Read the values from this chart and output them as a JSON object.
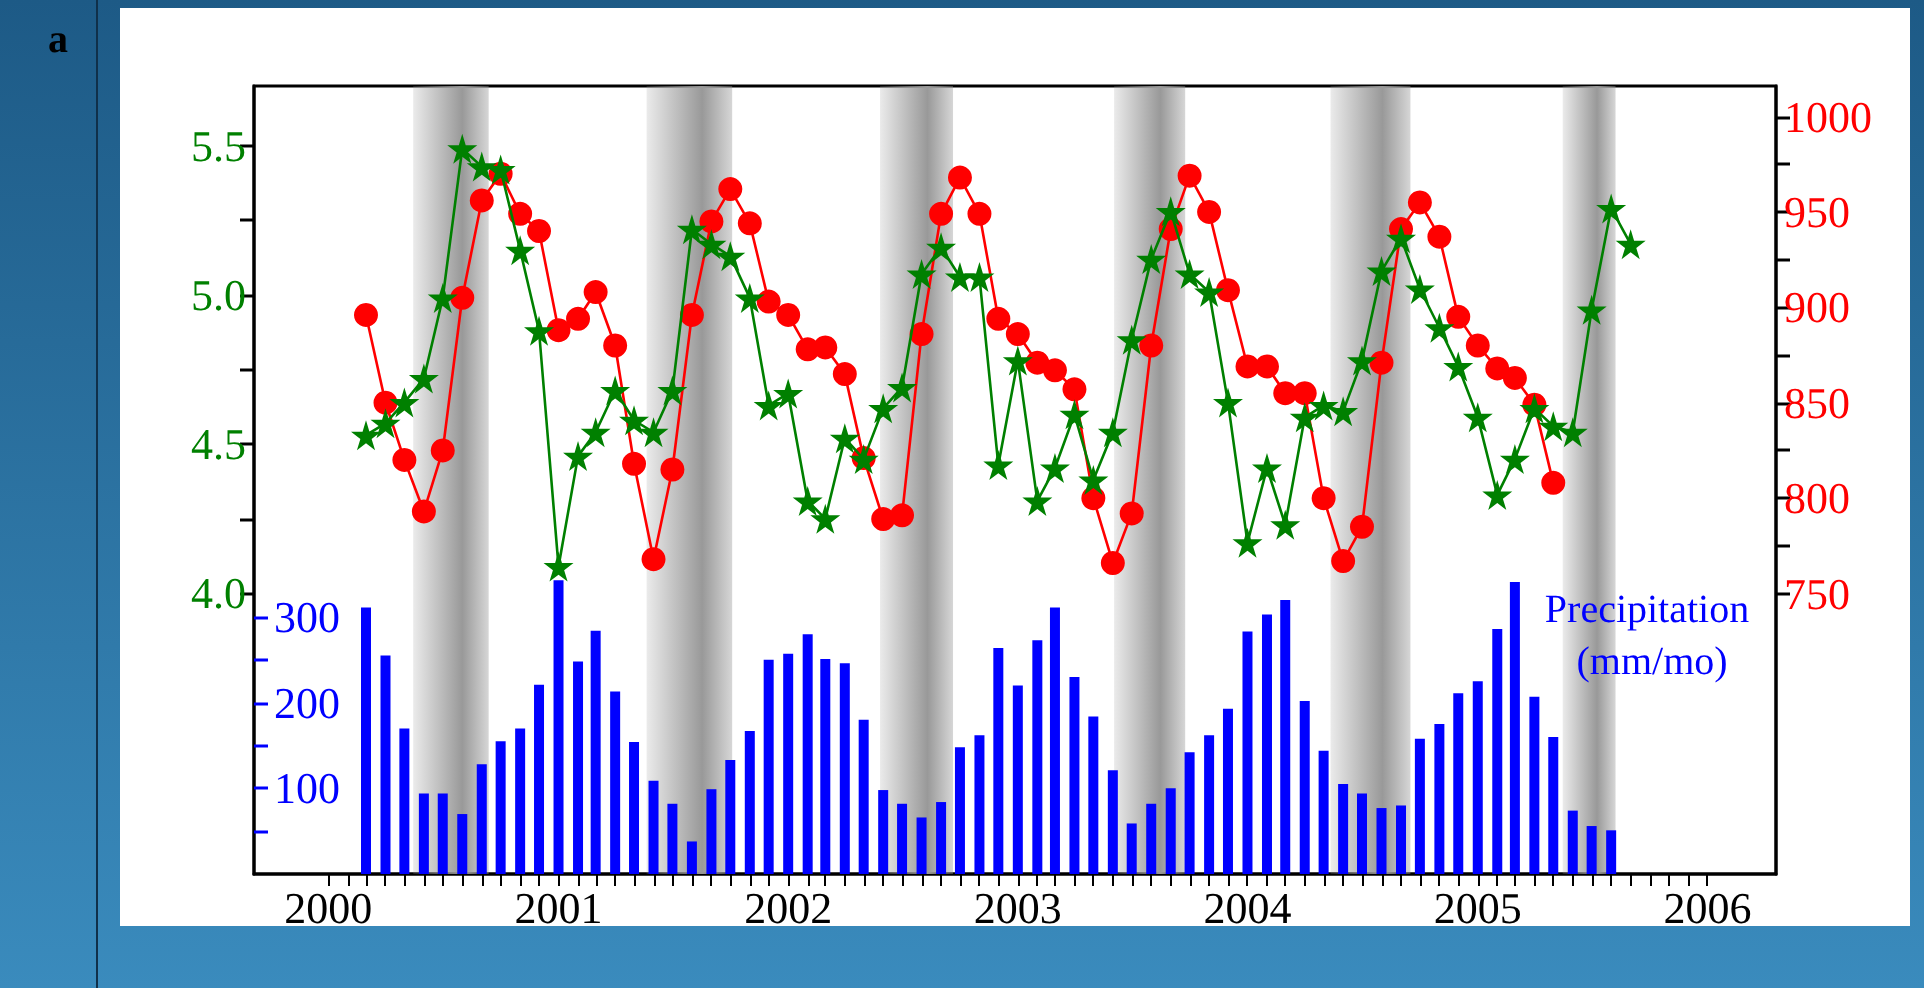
{
  "chart_data": {
    "type": "line",
    "annotations": [
      "a"
    ],
    "y3label": "Precipitation (mm/mo)",
    "xlim": [
      "1999-09-05",
      "2006-04-20"
    ],
    "xticks": [
      "2000",
      {
        "value": "2000-02",
        "label": null
      },
      {
        "value": "2000-03",
        "label": null
      },
      {
        "value": "2000-04",
        "label": null
      },
      {
        "value": "2000-05",
        "label": null
      },
      {
        "value": "2000-06",
        "label": null
      },
      {
        "value": "2000-07",
        "label": null
      },
      {
        "value": "2000-08",
        "label": null
      },
      {
        "value": "2000-09",
        "label": null
      },
      {
        "value": "2000-10",
        "label": null
      },
      {
        "value": "2000-11",
        "label": null
      },
      {
        "value": "2000-12",
        "label": null
      },
      "2001",
      {
        "value": "2001-02",
        "label": null
      },
      {
        "value": "2001-03",
        "label": null
      },
      {
        "value": "2001-04",
        "label": null
      },
      {
        "value": "2001-05",
        "label": null
      },
      {
        "value": "2001-06",
        "label": null
      },
      {
        "value": "2001-07",
        "label": null
      },
      {
        "value": "2001-08",
        "label": null
      },
      {
        "value": "2001-09",
        "label": null
      },
      {
        "value": "2001-10",
        "label": null
      },
      {
        "value": "2001-11",
        "label": null
      },
      {
        "value": "2001-12",
        "label": null
      },
      "2002",
      {
        "value": "2002-02",
        "label": null
      },
      {
        "value": "2002-03",
        "label": null
      },
      {
        "value": "2002-04",
        "label": null
      },
      {
        "value": "2002-05",
        "label": null
      },
      {
        "value": "2002-06",
        "label": null
      },
      {
        "value": "2002-07",
        "label": null
      },
      {
        "value": "2002-08",
        "label": null
      },
      {
        "value": "2002-09",
        "label": null
      },
      {
        "value": "2002-10",
        "label": null
      },
      {
        "value": "2002-11",
        "label": null
      },
      {
        "value": "2002-12",
        "label": null
      },
      "2003",
      {
        "value": "2003-02",
        "label": null
      },
      {
        "value": "2003-03",
        "label": null
      },
      {
        "value": "2003-04",
        "label": null
      },
      {
        "value": "2003-05",
        "label": null
      },
      {
        "value": "2003-06",
        "label": null
      },
      {
        "value": "2003-07",
        "label": null
      },
      {
        "value": "2003-08",
        "label": null
      },
      {
        "value": "2003-09",
        "label": null
      },
      {
        "value": "2003-10",
        "label": null
      },
      {
        "value": "2003-11",
        "label": null
      },
      {
        "value": "2003-12",
        "label": null
      },
      "2004",
      {
        "value": "2004-02",
        "label": null
      },
      {
        "value": "2004-03",
        "label": null
      },
      {
        "value": "2004-04",
        "label": null
      },
      {
        "value": "2004-05",
        "label": null
      },
      {
        "value": "2004-06",
        "label": null
      },
      {
        "value": "2004-07",
        "label": null
      },
      {
        "value": "2004-08",
        "label": null
      },
      {
        "value": "2004-09",
        "label": null
      },
      {
        "value": "2004-10",
        "label": null
      },
      {
        "value": "2004-11",
        "label": null
      },
      {
        "value": "2004-12",
        "label": null
      },
      "2005",
      {
        "value": "2005-02",
        "label": null
      },
      {
        "value": "2005-03",
        "label": null
      },
      {
        "value": "2005-04",
        "label": null
      },
      {
        "value": "2005-05",
        "label": null
      },
      {
        "value": "2005-06",
        "label": null
      },
      {
        "value": "2005-07",
        "label": null
      },
      {
        "value": "2005-08",
        "label": null
      },
      {
        "value": "2005-09",
        "label": null
      },
      {
        "value": "2005-10",
        "label": null
      },
      {
        "value": "2005-11",
        "label": null
      },
      {
        "value": "2005-12",
        "label": null
      },
      "2006"
    ],
    "ylim": [
      3.06,
      5.7
    ],
    "yticks": [
      {
        "value": 4.0,
        "label": "4.0"
      },
      {
        "value": 4.25,
        "label": null
      },
      {
        "value": 4.5,
        "label": "4.5"
      },
      {
        "value": 4.75,
        "label": null
      },
      {
        "value": 5.0,
        "label": "5.0"
      },
      {
        "value": 5.25,
        "label": null
      },
      {
        "value": 5.5,
        "label": "5.5"
      }
    ],
    "y2lim": [
      603,
      1016
    ],
    "y2ticks": [
      750,
      {
        "value": 775,
        "label": null
      },
      800,
      {
        "value": 825,
        "label": null
      },
      850,
      {
        "value": 875,
        "label": null
      },
      900,
      {
        "value": 925,
        "label": null
      },
      950,
      {
        "value": 975,
        "label": null
      },
      1000
    ],
    "y3lim": [
      0,
      920
    ],
    "y3ticks": [
      {
        "value": 50,
        "label": null
      },
      100,
      {
        "value": 150,
        "label": null
      },
      200,
      {
        "value": 250,
        "label": null
      },
      300
    ],
    "bands": [
      {
        "axis": "x",
        "from": "2000-05-15",
        "to": "2000-09-12",
        "color": "#999999"
      },
      {
        "axis": "x",
        "from": "2001-05-21",
        "to": "2001-10-04",
        "color": "#999999"
      },
      {
        "axis": "x",
        "from": "2002-05-27",
        "to": "2002-09-20",
        "color": "#999999"
      },
      {
        "axis": "x",
        "from": "2003-06-03",
        "to": "2003-09-24",
        "color": "#999999"
      },
      {
        "axis": "x",
        "from": "2004-05-12",
        "to": "2004-09-16",
        "color": "#999999"
      },
      {
        "axis": "x",
        "from": "2005-05-16",
        "to": "2005-08-08",
        "color": "#999999"
      }
    ],
    "series": [
      {
        "color": "#008000",
        "marker": "star",
        "x": [
          "2000-03",
          "2000-04",
          "2000-05",
          "2000-06",
          "2000-07",
          "2000-08",
          "2000-09",
          "2000-10",
          "2000-11",
          "2000-12",
          "2001-01",
          "2001-02",
          "2001-03",
          "2001-04",
          "2001-05",
          "2001-06",
          "2001-07",
          "2001-08",
          "2001-09",
          "2001-10",
          "2001-11",
          "2001-12",
          "2002-01",
          "2002-02",
          "2002-03",
          "2002-04",
          "2002-05",
          "2002-06",
          "2002-07",
          "2002-08",
          "2002-09",
          "2002-10",
          "2002-11",
          "2002-12",
          "2003-01",
          "2003-02",
          "2003-03",
          "2003-04",
          "2003-05",
          "2003-06",
          "2003-07",
          "2003-08",
          "2003-09",
          "2003-10",
          "2003-11",
          "2003-12",
          "2004-01",
          "2004-02",
          "2004-03",
          "2004-04",
          "2004-05",
          "2004-06",
          "2004-07",
          "2004-08",
          "2004-09",
          "2004-10",
          "2004-11",
          "2004-12",
          "2005-01",
          "2005-02",
          "2005-03",
          "2005-04",
          "2005-05",
          "2005-06",
          "2005-07",
          "2005-08",
          "2005-09"
        ],
        "values": [
          4.53,
          4.57,
          4.64,
          4.72,
          4.99,
          5.49,
          5.43,
          5.42,
          5.15,
          4.88,
          4.09,
          4.46,
          4.54,
          4.68,
          4.58,
          4.54,
          4.68,
          5.22,
          5.17,
          5.13,
          4.99,
          4.63,
          4.67,
          4.31,
          4.25,
          4.52,
          4.45,
          4.62,
          4.69,
          5.07,
          5.16,
          5.06,
          5.06,
          4.43,
          4.78,
          4.31,
          4.42,
          4.6,
          4.38,
          4.54,
          4.85,
          5.12,
          5.28,
          5.07,
          5.01,
          4.64,
          4.17,
          4.42,
          4.23,
          4.59,
          4.63,
          4.61,
          4.78,
          5.08,
          5.19,
          5.02,
          4.89,
          4.76,
          4.59,
          4.33,
          4.45,
          4.62,
          4.56,
          4.54,
          4.95,
          5.29,
          5.17
        ]
      },
      {
        "color": "#ff0000",
        "marker": "circle",
        "axis": "y2",
        "x": [
          "2000-03",
          "2000-04",
          "2000-05",
          "2000-06",
          "2000-07",
          "2000-08",
          "2000-09",
          "2000-10",
          "2000-11",
          "2000-12",
          "2001-01",
          "2001-02",
          "2001-03",
          "2001-04",
          "2001-05",
          "2001-06",
          "2001-07",
          "2001-08",
          "2001-09",
          "2001-10",
          "2001-11",
          "2001-12",
          "2002-01",
          "2002-02",
          "2002-03",
          "2002-04",
          "2002-05",
          "2002-06",
          "2002-07",
          "2002-08",
          "2002-09",
          "2002-10",
          "2002-11",
          "2002-12",
          "2003-01",
          "2003-02",
          "2003-03",
          "2003-04",
          "2003-05",
          "2003-06",
          "2003-07",
          "2003-08",
          "2003-09",
          "2003-10",
          "2003-11",
          "2003-12",
          "2004-01",
          "2004-02",
          "2004-03",
          "2004-04",
          "2004-05",
          "2004-06",
          "2004-07",
          "2004-08",
          "2004-09",
          "2004-10",
          "2004-11",
          "2004-12",
          "2005-01",
          "2005-02",
          "2005-03",
          "2005-04",
          "2005-05"
        ],
        "values": [
          896,
          850,
          820,
          793,
          825,
          905,
          956,
          970,
          949,
          940,
          888,
          894,
          908,
          880,
          818,
          768,
          815,
          896,
          945,
          962,
          944,
          903,
          896,
          878,
          879,
          865,
          821,
          789,
          791,
          886,
          949,
          968,
          949,
          894,
          886,
          871,
          867,
          857,
          800,
          766,
          792,
          880,
          941,
          969,
          950,
          909,
          869,
          869,
          855,
          855,
          800,
          767,
          785,
          871,
          941,
          955,
          937,
          895,
          880,
          868,
          863,
          849,
          808
        ]
      },
      {
        "type": "bar",
        "color": "#0000ff",
        "axis": "y3",
        "x": [
          "2000-03",
          "2000-04",
          "2000-05",
          "2000-06",
          "2000-07",
          "2000-08",
          "2000-09",
          "2000-10",
          "2000-11",
          "2000-12",
          "2001-01",
          "2001-02",
          "2001-03",
          "2001-04",
          "2001-05",
          "2001-06",
          "2001-07",
          "2001-08",
          "2001-09",
          "2001-10",
          "2001-11",
          "2001-12",
          "2002-01",
          "2002-02",
          "2002-03",
          "2002-04",
          "2002-05",
          "2002-06",
          "2002-07",
          "2002-08",
          "2002-09",
          "2002-10",
          "2002-11",
          "2002-12",
          "2003-01",
          "2003-02",
          "2003-03",
          "2003-04",
          "2003-05",
          "2003-06",
          "2003-07",
          "2003-08",
          "2003-09",
          "2003-10",
          "2003-11",
          "2003-12",
          "2004-01",
          "2004-02",
          "2004-03",
          "2004-04",
          "2004-05",
          "2004-06",
          "2004-07",
          "2004-08",
          "2004-09",
          "2004-10",
          "2004-11",
          "2004-12",
          "2005-01",
          "2005-02",
          "2005-03",
          "2005-04",
          "2005-05",
          "2005-06",
          "2005-07",
          "2005-08"
        ],
        "values": [
          311,
          255,
          170,
          94,
          94,
          70,
          128,
          155,
          170,
          221,
          343,
          248,
          284,
          213,
          154,
          109,
          82,
          38,
          99,
          133,
          167,
          250,
          257,
          280,
          251,
          246,
          180,
          98,
          82,
          66,
          84,
          148,
          162,
          264,
          220,
          273,
          311,
          230,
          184,
          121,
          59,
          82,
          100,
          142,
          162,
          193,
          283,
          303,
          320,
          202,
          144,
          105,
          94,
          77,
          80,
          158,
          175,
          211,
          225,
          286,
          341,
          207,
          160,
          74,
          56,
          51
        ]
      }
    ]
  }
}
